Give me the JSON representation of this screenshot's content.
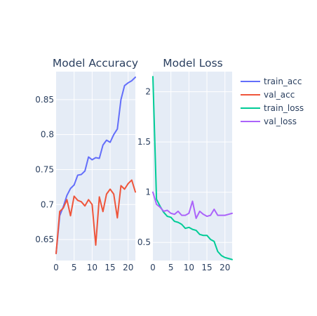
{
  "chart_data": [
    {
      "type": "line",
      "title": "Model Accuracy",
      "xlabel": "",
      "ylabel": "",
      "x": [
        0,
        1,
        2,
        3,
        4,
        5,
        6,
        7,
        8,
        9,
        10,
        11,
        12,
        13,
        14,
        15,
        16,
        17,
        18,
        19,
        20,
        21,
        22
      ],
      "xlim": [
        0,
        22
      ],
      "ylim": [
        0.62,
        0.89
      ],
      "xticks": [
        0,
        5,
        10,
        15,
        20
      ],
      "xtick_labels": [
        "0",
        "5",
        "10",
        "15",
        "20"
      ],
      "yticks": [
        0.65,
        0.7,
        0.75,
        0.8,
        0.85
      ],
      "ytick_labels": [
        "0.65",
        "0.7",
        "0.75",
        "0.8",
        "0.85"
      ],
      "grid": true,
      "series": [
        {
          "name": "train_acc",
          "color": "#636efa",
          "values": [
            0.63,
            0.684,
            0.697,
            0.713,
            0.723,
            0.728,
            0.742,
            0.743,
            0.748,
            0.768,
            0.764,
            0.767,
            0.766,
            0.785,
            0.792,
            0.789,
            0.8,
            0.808,
            0.85,
            0.87,
            0.874,
            0.877,
            0.882
          ]
        },
        {
          "name": "val_acc",
          "color": "#ef553b",
          "values": [
            0.63,
            0.69,
            0.695,
            0.707,
            0.684,
            0.712,
            0.706,
            0.704,
            0.698,
            0.707,
            0.7,
            0.642,
            0.711,
            0.69,
            0.715,
            0.722,
            0.715,
            0.681,
            0.727,
            0.722,
            0.73,
            0.735,
            0.718
          ]
        }
      ]
    },
    {
      "type": "line",
      "title": "Model Loss",
      "xlabel": "",
      "ylabel": "",
      "x": [
        0,
        1,
        2,
        3,
        4,
        5,
        6,
        7,
        8,
        9,
        10,
        11,
        12,
        13,
        14,
        15,
        16,
        17,
        18,
        19,
        20,
        21,
        22
      ],
      "xlim": [
        0,
        22
      ],
      "ylim": [
        0.32,
        2.2
      ],
      "xticks": [
        0,
        5,
        10,
        15,
        20
      ],
      "xtick_labels": [
        "0",
        "5",
        "10",
        "15",
        "20"
      ],
      "yticks": [
        0.5,
        1,
        1.5,
        2
      ],
      "ytick_labels": [
        "0.5",
        "1",
        "1.5",
        "2"
      ],
      "grid": true,
      "series": [
        {
          "name": "train_loss",
          "color": "#00cc96",
          "values": [
            2.15,
            0.93,
            0.86,
            0.8,
            0.76,
            0.75,
            0.71,
            0.7,
            0.68,
            0.64,
            0.65,
            0.63,
            0.62,
            0.58,
            0.57,
            0.57,
            0.53,
            0.51,
            0.41,
            0.37,
            0.35,
            0.34,
            0.33
          ]
        },
        {
          "name": "val_loss",
          "color": "#ab63fa",
          "values": [
            1.0,
            0.88,
            0.85,
            0.81,
            0.82,
            0.79,
            0.78,
            0.81,
            0.77,
            0.77,
            0.79,
            0.91,
            0.74,
            0.81,
            0.78,
            0.76,
            0.77,
            0.83,
            0.77,
            0.77,
            0.77,
            0.78,
            0.79
          ]
        }
      ]
    }
  ],
  "legend": {
    "placement": "right",
    "items": [
      {
        "label": "train_acc",
        "color": "#636efa"
      },
      {
        "label": "val_acc",
        "color": "#ef553b"
      },
      {
        "label": "train_loss",
        "color": "#00cc96"
      },
      {
        "label": "val_loss",
        "color": "#ab63fa"
      }
    ]
  }
}
